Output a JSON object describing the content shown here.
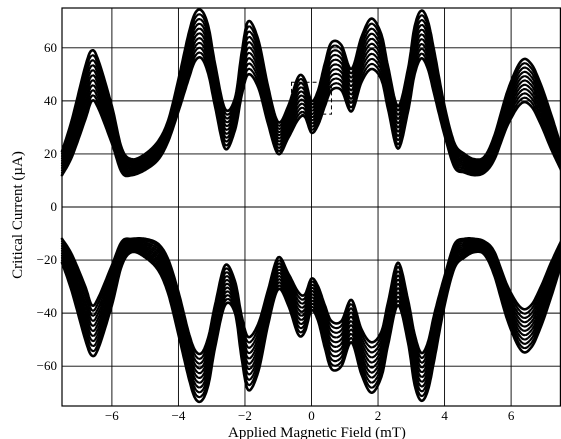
{
  "chart_data": {
    "type": "line",
    "xlabel": "Applied Magnetic Field (mT)",
    "ylabel": "Critical Current (µA)",
    "xlim": [
      -7.5,
      7.5
    ],
    "ylim": [
      -75,
      75
    ],
    "x_ticks": [
      -6,
      -4,
      -2,
      0,
      2,
      4,
      6
    ],
    "x_tick_labels": [
      "−6",
      "−4",
      "−2",
      "0",
      "2",
      "4",
      "6"
    ],
    "y_ticks": [
      -60,
      -40,
      -20,
      0,
      20,
      40,
      60
    ],
    "y_tick_labels": [
      "−60",
      "−40",
      "−20",
      "0",
      "20",
      "40",
      "60"
    ],
    "grid": true,
    "series": [
      {
        "branch": "positive",
        "x": [
          -7.5,
          -7.2,
          -6.8,
          -6.6,
          -6.4,
          -6.0,
          -5.7,
          -5.4,
          -5.0,
          -4.6,
          -4.3,
          -4.0,
          -3.7,
          -3.5,
          -3.3,
          -3.1,
          -2.9,
          -2.6,
          -2.3,
          -2.1,
          -1.9,
          -1.6,
          -1.3,
          -1.0,
          -0.7,
          -0.4,
          -0.2,
          0.0,
          0.2,
          0.4,
          0.6,
          0.9,
          1.2,
          1.5,
          1.8,
          2.1,
          2.3,
          2.6,
          2.9,
          3.1,
          3.3,
          3.5,
          3.7,
          4.0,
          4.3,
          4.6,
          4.9,
          5.2,
          5.5,
          5.9,
          6.3,
          6.6,
          6.9,
          7.2,
          7.5
        ],
        "upper": [
          21,
          33,
          53,
          59,
          55,
          38,
          22,
          18,
          20,
          25,
          33,
          48,
          65,
          73,
          74,
          68,
          54,
          37,
          41,
          58,
          70,
          63,
          45,
          32,
          38,
          49,
          48,
          40,
          44,
          54,
          62,
          61,
          52,
          64,
          71,
          65,
          53,
          38,
          52,
          68,
          74,
          70,
          58,
          38,
          24,
          20,
          18,
          19,
          27,
          44,
          55,
          54,
          46,
          35,
          23
        ],
        "lower": [
          12,
          19,
          33,
          40,
          37,
          24,
          13,
          12,
          14,
          18,
          25,
          36,
          48,
          55,
          56,
          50,
          38,
          22,
          29,
          42,
          50,
          45,
          31,
          20,
          26,
          33,
          34,
          28,
          31,
          38,
          44,
          44,
          36,
          47,
          52,
          48,
          37,
          22,
          36,
          50,
          56,
          52,
          42,
          27,
          15,
          13,
          12,
          13,
          18,
          31,
          39,
          38,
          31,
          22,
          14
        ]
      },
      {
        "branch": "negative",
        "x": [
          -7.5,
          -7.2,
          -6.8,
          -6.6,
          -6.4,
          -6.0,
          -5.7,
          -5.4,
          -5.0,
          -4.6,
          -4.3,
          -4.0,
          -3.7,
          -3.5,
          -3.3,
          -3.1,
          -2.9,
          -2.6,
          -2.3,
          -2.1,
          -1.9,
          -1.6,
          -1.3,
          -1.0,
          -0.7,
          -0.4,
          -0.2,
          0.0,
          0.2,
          0.4,
          0.6,
          0.9,
          1.2,
          1.5,
          1.8,
          2.1,
          2.3,
          2.6,
          2.9,
          3.1,
          3.3,
          3.5,
          3.7,
          4.0,
          4.3,
          4.6,
          4.9,
          5.2,
          5.5,
          5.9,
          6.3,
          6.6,
          6.9,
          7.2,
          7.5
        ],
        "upper": [
          -12,
          -18,
          -30,
          -37,
          -34,
          -22,
          -13,
          -12,
          -12,
          -14,
          -20,
          -32,
          -47,
          -54,
          -55,
          -49,
          -37,
          -22,
          -28,
          -41,
          -49,
          -44,
          -31,
          -19,
          -25,
          -32,
          -33,
          -27,
          -30,
          -37,
          -43,
          -43,
          -35,
          -46,
          -51,
          -47,
          -36,
          -21,
          -35,
          -48,
          -55,
          -51,
          -40,
          -26,
          -14,
          -12,
          -12,
          -13,
          -17,
          -30,
          -38,
          -37,
          -30,
          -21,
          -13
        ],
        "lower": [
          -21,
          -32,
          -50,
          -56,
          -53,
          -37,
          -22,
          -17,
          -19,
          -24,
          -33,
          -48,
          -64,
          -72,
          -73,
          -67,
          -53,
          -37,
          -40,
          -57,
          -69,
          -62,
          -44,
          -31,
          -37,
          -48,
          -47,
          -39,
          -43,
          -53,
          -61,
          -60,
          -51,
          -63,
          -70,
          -64,
          -52,
          -37,
          -51,
          -67,
          -73,
          -69,
          -57,
          -37,
          -23,
          -19,
          -17,
          -18,
          -26,
          -43,
          -54,
          -53,
          -45,
          -34,
          -22
        ]
      }
    ],
    "annotations": [
      {
        "type": "dashed-box",
        "x_range": [
          -0.6,
          0.6
        ],
        "y_range": [
          35,
          47
        ]
      }
    ]
  }
}
